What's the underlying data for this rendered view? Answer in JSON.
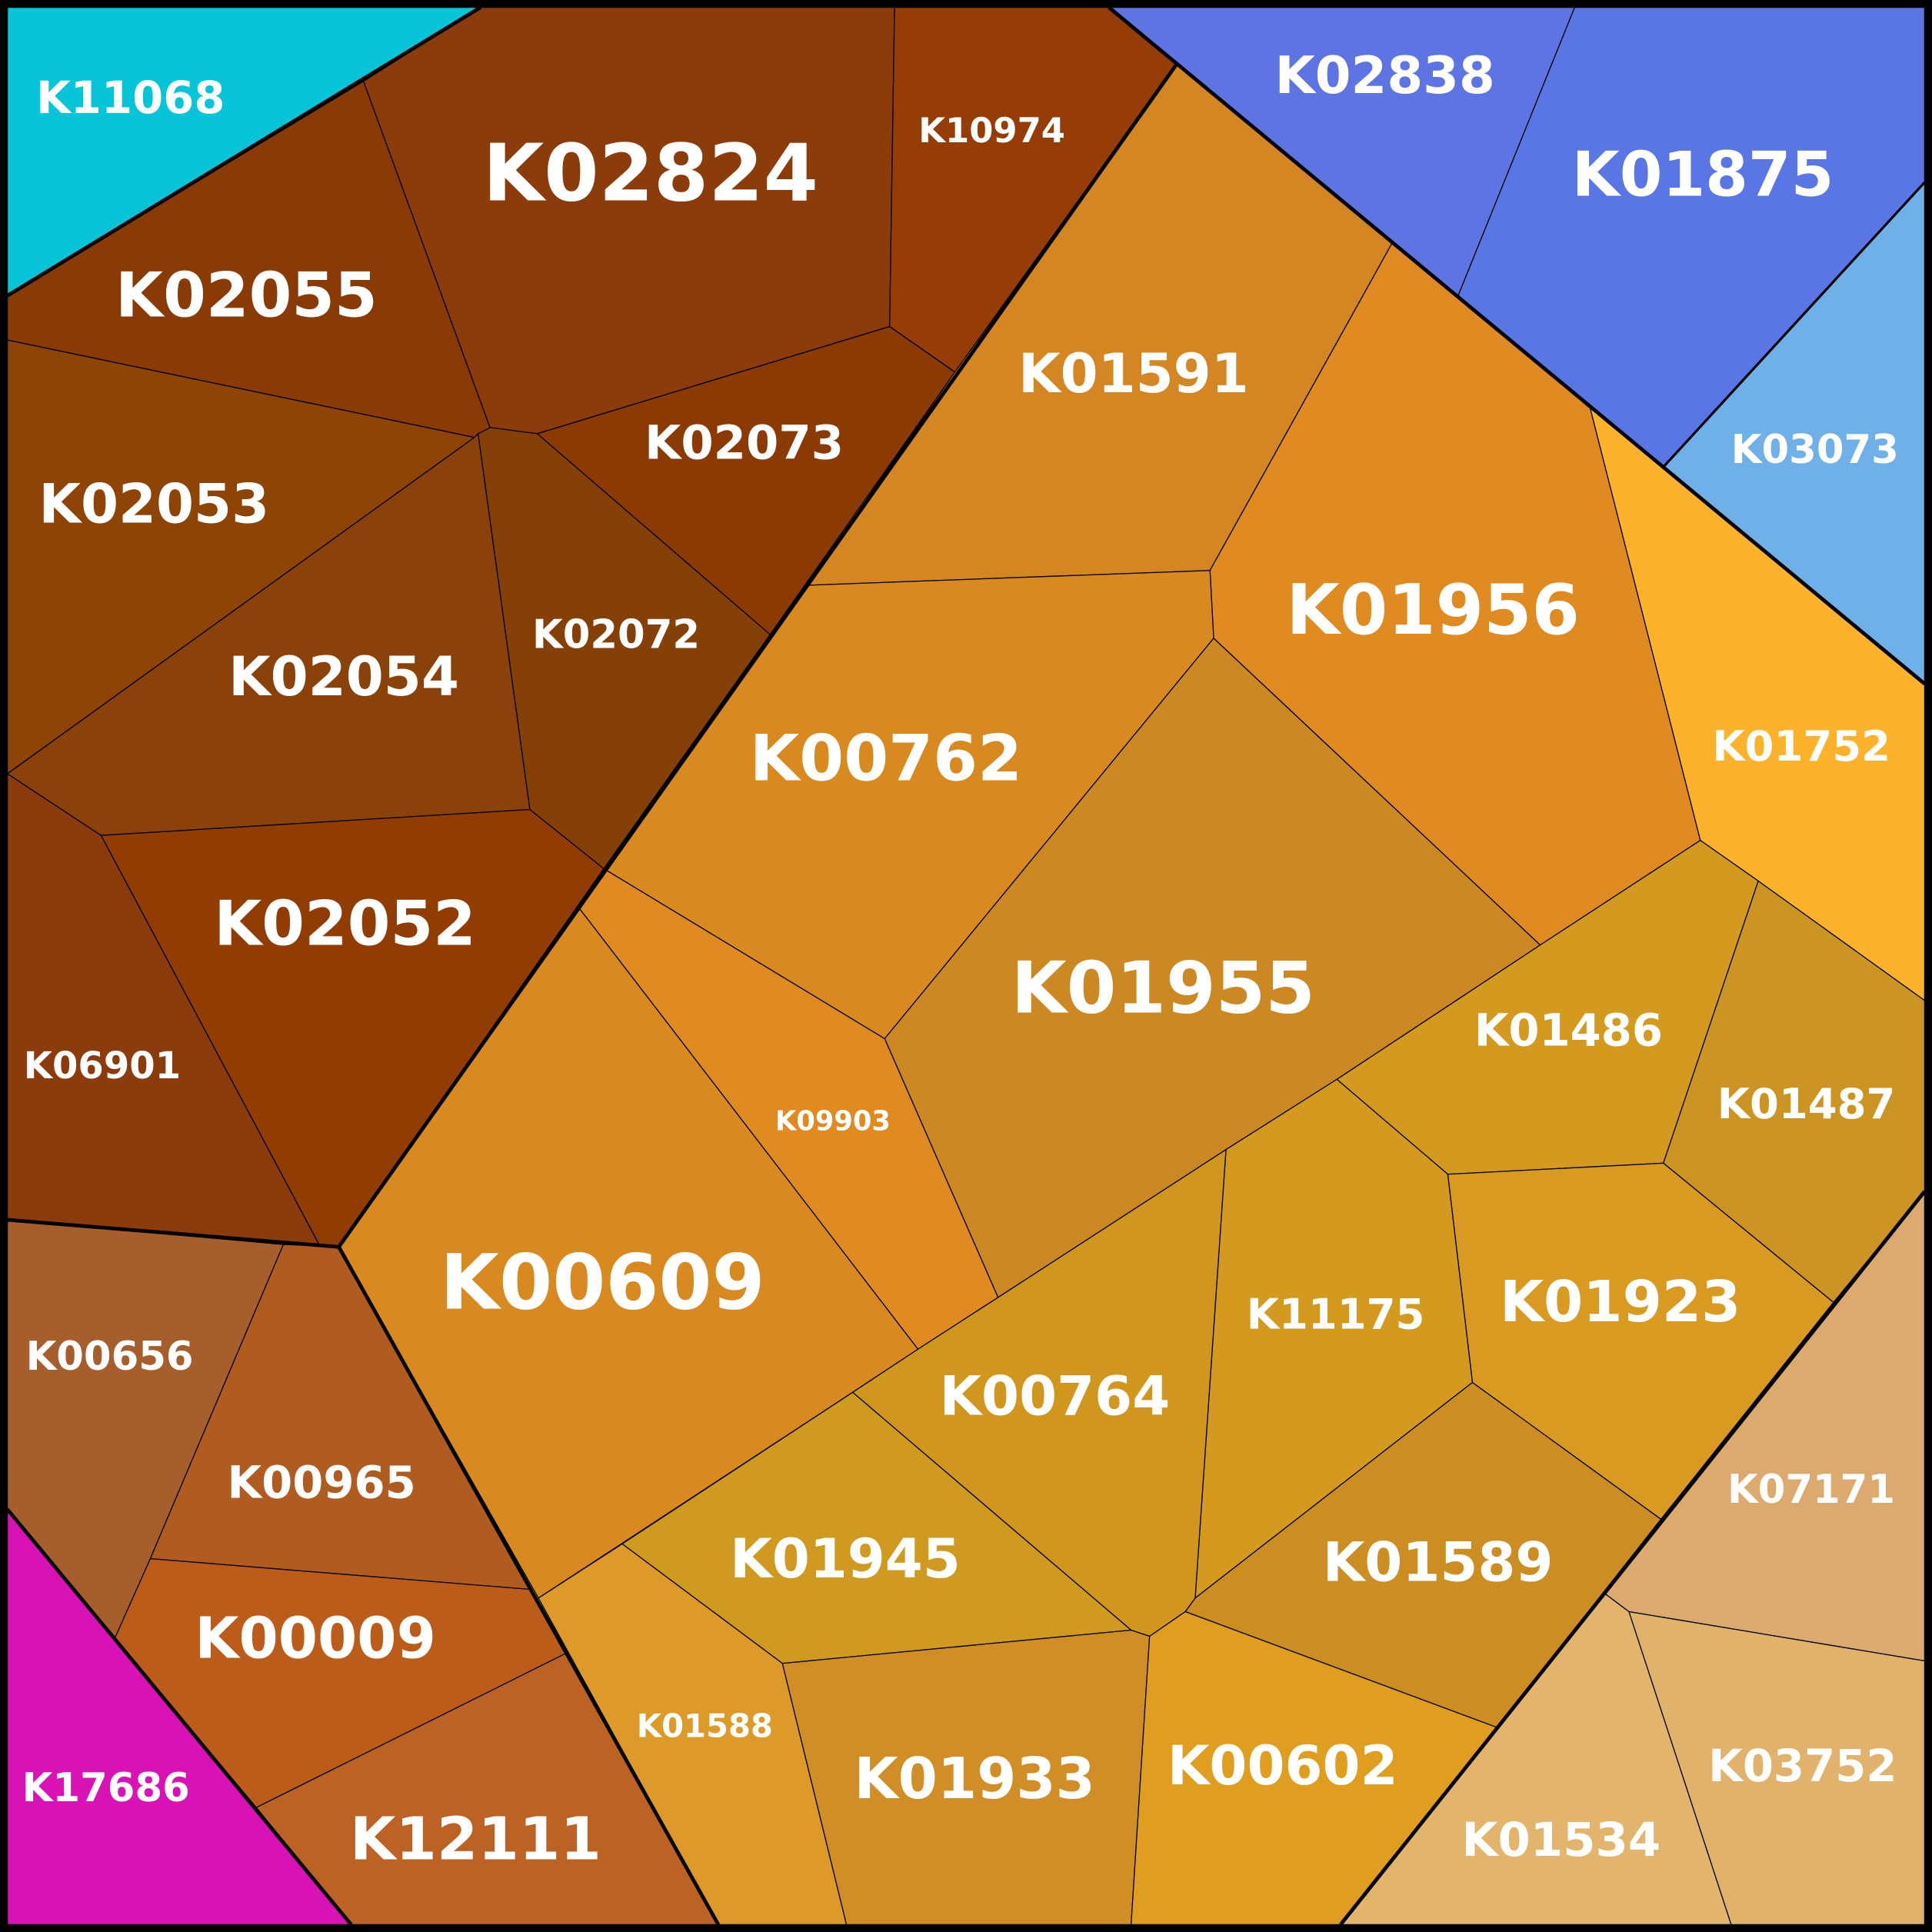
{
  "cells": [
    {
      "label": "K11068"
    },
    {
      "label": "K02824"
    },
    {
      "label": "K10974"
    },
    {
      "label": "K02055"
    },
    {
      "label": "K02073"
    },
    {
      "label": "K02072"
    },
    {
      "label": "K02053"
    },
    {
      "label": "K02054"
    },
    {
      "label": "K02052"
    },
    {
      "label": "K06901"
    },
    {
      "label": "K00656"
    },
    {
      "label": "K00965"
    },
    {
      "label": "K00009"
    },
    {
      "label": "K12111"
    },
    {
      "label": "K17686"
    },
    {
      "label": "K02838"
    },
    {
      "label": "K01875"
    },
    {
      "label": "K03073"
    },
    {
      "label": "K01591"
    },
    {
      "label": "K01956"
    },
    {
      "label": "K01752"
    },
    {
      "label": "K00762"
    },
    {
      "label": "K01955"
    },
    {
      "label": "K09903"
    },
    {
      "label": "K00609"
    },
    {
      "label": "K01486"
    },
    {
      "label": "K01487"
    },
    {
      "label": "K01923"
    },
    {
      "label": "K11175"
    },
    {
      "label": "K00764"
    },
    {
      "label": "K01589"
    },
    {
      "label": "K01945"
    },
    {
      "label": "K01588"
    },
    {
      "label": "K01933"
    },
    {
      "label": "K00602"
    },
    {
      "label": "K07171"
    },
    {
      "label": "K03752"
    },
    {
      "label": "K01534"
    }
  ]
}
